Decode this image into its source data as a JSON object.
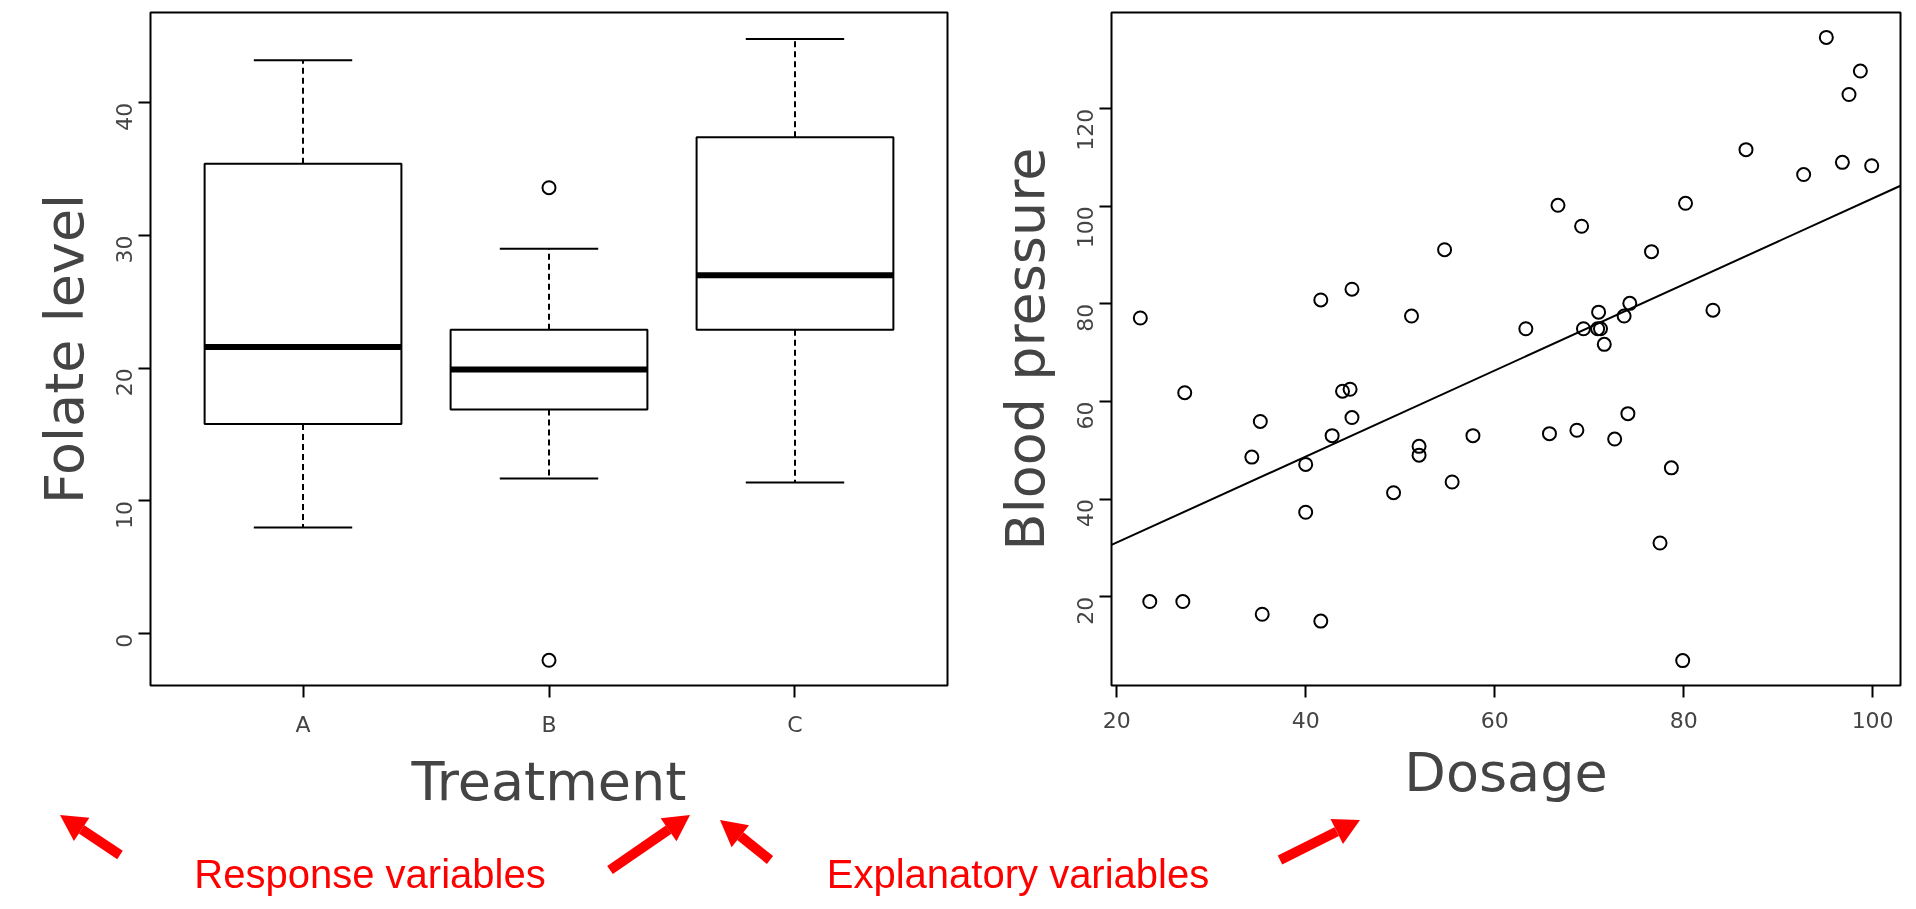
{
  "chart_data": [
    {
      "type": "box",
      "categories": [
        "A",
        "B",
        "C"
      ],
      "xlabel": "Treatment",
      "ylabel": "Folate level",
      "ylim": [
        -3.9,
        46.8
      ],
      "yticks": [
        0,
        10,
        20,
        30,
        40
      ],
      "grid": false,
      "boxes": [
        {
          "low": 8.0,
          "q1": 15.8,
          "median": 21.6,
          "q3": 35.4,
          "high": 43.2
        },
        {
          "low": 11.7,
          "q1": 16.9,
          "median": 19.9,
          "q3": 22.9,
          "high": 29.0,
          "outliers": [
            33.6,
            -2.0
          ]
        },
        {
          "low": 11.4,
          "q1": 22.9,
          "median": 27.0,
          "q3": 37.4,
          "high": 44.8
        }
      ],
      "annotations": [
        "Response variables",
        "Explanatory variables"
      ]
    },
    {
      "type": "scatter",
      "xlabel": "Dosage",
      "ylabel": "Blood pressure",
      "xlim": [
        19.45,
        102.95
      ],
      "ylim": [
        1.8,
        139.7
      ],
      "xticks": [
        20,
        40,
        60,
        80,
        100
      ],
      "yticks": [
        20,
        40,
        60,
        80,
        100,
        120
      ],
      "grid": false,
      "series": [
        {
          "marker": "circle",
          "color": "#000000",
          "x": [
            22.5,
            23.5,
            27.0,
            27.2,
            34.3,
            35.2,
            35.4,
            40.0,
            40.0,
            41.6,
            41.6,
            42.8,
            43.9,
            44.7,
            44.9,
            44.9,
            49.3,
            51.2,
            52.0,
            52.0,
            54.7,
            55.5,
            57.7,
            63.3,
            65.8,
            66.7,
            68.7,
            69.2,
            69.4,
            71.0,
            70.9,
            71.2,
            71.6,
            72.7,
            73.7,
            74.1,
            74.3,
            76.6,
            77.5,
            78.7,
            79.9,
            80.2,
            83.1,
            86.6,
            92.7,
            95.1,
            96.8,
            97.5,
            98.7,
            99.9
          ],
          "values": [
            77.1,
            19.0,
            19.0,
            61.8,
            48.6,
            55.9,
            16.4,
            47.1,
            37.3,
            80.8,
            15.0,
            53.0,
            62.1,
            62.5,
            83.0,
            56.7,
            41.3,
            77.5,
            50.8,
            49.0,
            91.1,
            43.5,
            53.0,
            74.9,
            53.4,
            100.2,
            54.1,
            95.9,
            74.9,
            78.3,
            74.9,
            74.9,
            71.7,
            52.3,
            77.5,
            57.5,
            80.1,
            90.7,
            31.0,
            46.4,
            6.9,
            100.6,
            78.7,
            111.6,
            106.5,
            134.6,
            109.0,
            122.9,
            127.7,
            108.3
          ]
        },
        {
          "type": "line",
          "color": "#000000",
          "x": [
            19.45,
            102.95
          ],
          "values": [
            30.6,
            104.2
          ]
        }
      ]
    }
  ]
}
